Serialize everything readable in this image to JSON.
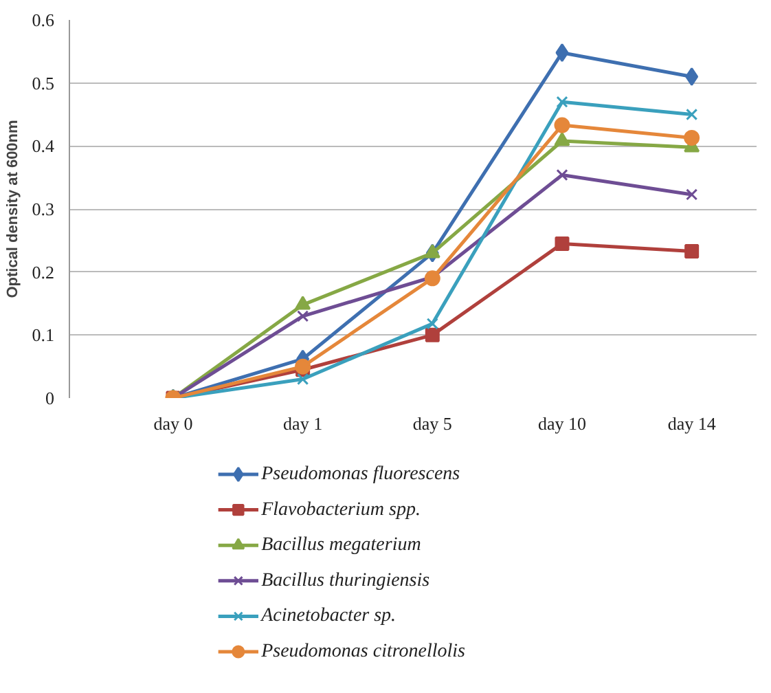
{
  "chart_data": {
    "type": "line",
    "ylabel": "Optical density at 600nm",
    "categories": [
      "day 0",
      "day 1",
      "day 5",
      "day 10",
      "day 14"
    ],
    "series": [
      {
        "name": "Pseudomonas fluorescens",
        "color": "#3e6fb0",
        "marker": "diamond",
        "values": [
          0,
          0.062,
          0.23,
          0.548,
          0.51
        ]
      },
      {
        "name": "Flavobacterium spp.",
        "color": "#b0403c",
        "marker": "square",
        "values": [
          0,
          0.045,
          0.1,
          0.245,
          0.233
        ]
      },
      {
        "name": "Bacillus megaterium",
        "color": "#86a845",
        "marker": "triangle",
        "values": [
          0,
          0.148,
          0.23,
          0.408,
          0.398
        ]
      },
      {
        "name": "Bacillus thuringiensis",
        "color": "#6e4d94",
        "marker": "cross",
        "values": [
          0,
          0.13,
          0.192,
          0.354,
          0.323
        ]
      },
      {
        "name": "Acinetobacter sp.",
        "color": "#3aa0bd",
        "marker": "cross",
        "values": [
          0,
          0.03,
          0.118,
          0.47,
          0.45
        ]
      },
      {
        "name": "Pseudomonas citronellolis",
        "color": "#e5873a",
        "marker": "circle",
        "values": [
          0,
          0.05,
          0.19,
          0.433,
          0.413
        ]
      }
    ],
    "ylim": [
      0,
      0.6
    ],
    "yticks": [
      0,
      0.1,
      0.2,
      0.3,
      0.4,
      0.5,
      0.6
    ],
    "grid": "y",
    "legend": "bottom",
    "line_style": "solid"
  }
}
